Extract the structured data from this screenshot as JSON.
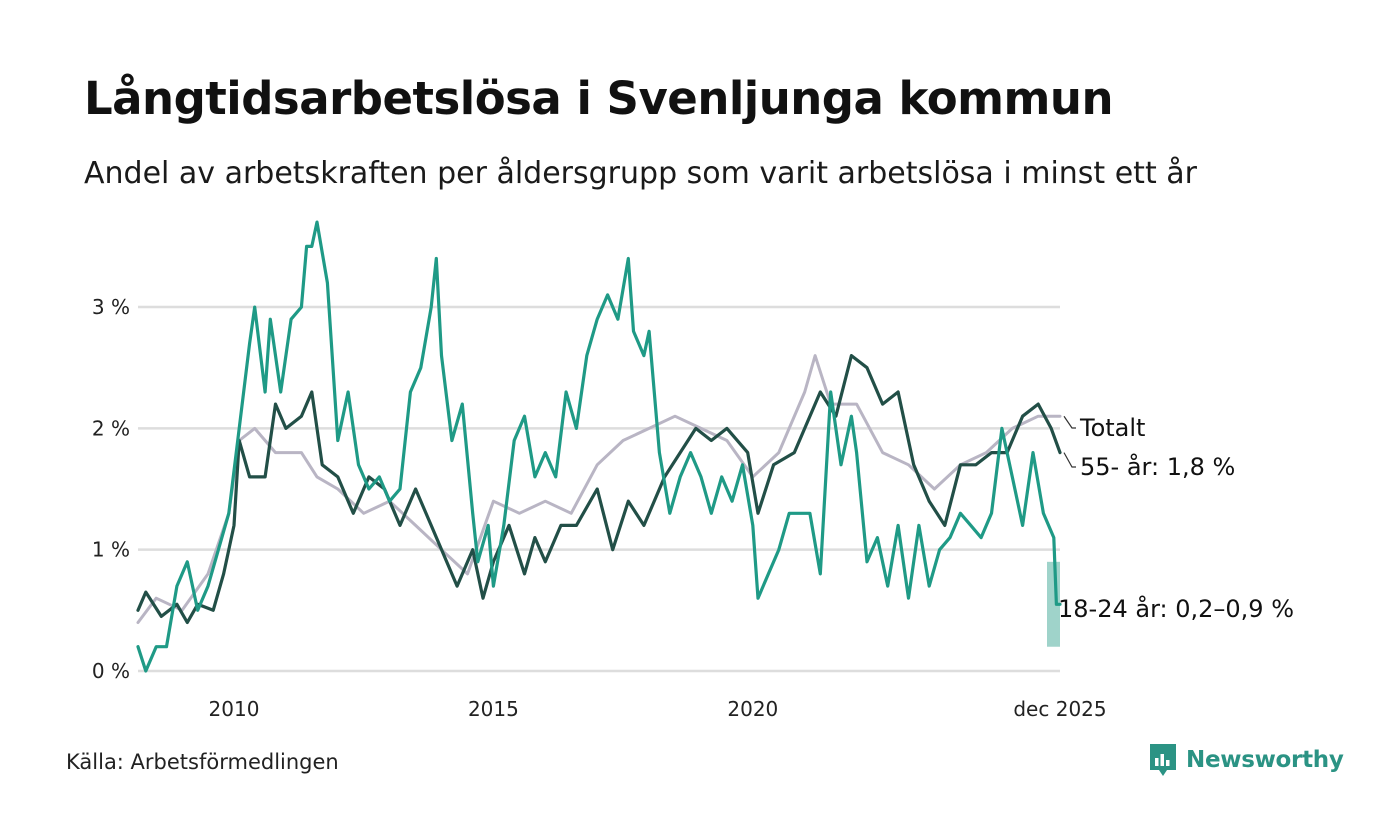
{
  "header": {
    "title": "Långtidsarbetslösa i Svenljunga kommun",
    "subtitle": "Andel av arbetskraften per åldersgrupp som varit arbetslösa i minst ett år"
  },
  "footer": {
    "source": "Källa: Arbetsförmedlingen",
    "brand": "Newsworthy"
  },
  "colors": {
    "total": "#b9b5c4",
    "age55": "#224f47",
    "age18_24": "#1f9a86",
    "band": "#9fd3ca",
    "grid": "#dddddd"
  },
  "chart_data": {
    "type": "line",
    "title": "Långtidsarbetslösa i Svenljunga kommun",
    "subtitle": "Andel av arbetskraften per åldersgrupp som varit arbetslösa i minst ett år",
    "unit": "%",
    "x_range": [
      2008.15,
      2025.92
    ],
    "ylim": [
      0,
      3.8
    ],
    "y_ticks": [
      {
        "value": 0,
        "label": "0 %"
      },
      {
        "value": 1,
        "label": "1 %"
      },
      {
        "value": 2,
        "label": "2 %"
      },
      {
        "value": 3,
        "label": "3 %"
      }
    ],
    "x_ticks": [
      {
        "value": 2010,
        "label": "2010"
      },
      {
        "value": 2015,
        "label": "2015"
      },
      {
        "value": 2020,
        "label": "2020"
      },
      {
        "value": 2025.92,
        "label": "dec 2025"
      }
    ],
    "series": [
      {
        "name": "Totalt",
        "label": "Totalt",
        "color": "#b9b5c4",
        "points": [
          [
            2008.15,
            0.4
          ],
          [
            2008.5,
            0.6
          ],
          [
            2009.0,
            0.5
          ],
          [
            2009.5,
            0.8
          ],
          [
            2009.9,
            1.3
          ],
          [
            2010.1,
            1.9
          ],
          [
            2010.4,
            2.0
          ],
          [
            2010.8,
            1.8
          ],
          [
            2011.3,
            1.8
          ],
          [
            2011.6,
            1.6
          ],
          [
            2012.0,
            1.5
          ],
          [
            2012.5,
            1.3
          ],
          [
            2013.0,
            1.4
          ],
          [
            2013.5,
            1.2
          ],
          [
            2014.0,
            1.0
          ],
          [
            2014.5,
            0.8
          ],
          [
            2015.0,
            1.4
          ],
          [
            2015.5,
            1.3
          ],
          [
            2016.0,
            1.4
          ],
          [
            2016.5,
            1.3
          ],
          [
            2017.0,
            1.7
          ],
          [
            2017.5,
            1.9
          ],
          [
            2018.0,
            2.0
          ],
          [
            2018.5,
            2.1
          ],
          [
            2019.0,
            2.0
          ],
          [
            2019.5,
            1.9
          ],
          [
            2020.0,
            1.6
          ],
          [
            2020.5,
            1.8
          ],
          [
            2021.0,
            2.3
          ],
          [
            2021.2,
            2.6
          ],
          [
            2021.5,
            2.2
          ],
          [
            2022.0,
            2.2
          ],
          [
            2022.5,
            1.8
          ],
          [
            2023.0,
            1.7
          ],
          [
            2023.5,
            1.5
          ],
          [
            2024.0,
            1.7
          ],
          [
            2024.5,
            1.8
          ],
          [
            2025.0,
            2.0
          ],
          [
            2025.5,
            2.1
          ],
          [
            2025.92,
            2.1
          ]
        ]
      },
      {
        "name": "55- år",
        "label": "55- år: 1,8 %",
        "color": "#224f47",
        "points": [
          [
            2008.15,
            0.5
          ],
          [
            2008.3,
            0.65
          ],
          [
            2008.6,
            0.45
          ],
          [
            2008.9,
            0.55
          ],
          [
            2009.1,
            0.4
          ],
          [
            2009.3,
            0.55
          ],
          [
            2009.6,
            0.5
          ],
          [
            2009.8,
            0.8
          ],
          [
            2010.0,
            1.2
          ],
          [
            2010.1,
            1.9
          ],
          [
            2010.3,
            1.6
          ],
          [
            2010.6,
            1.6
          ],
          [
            2010.8,
            2.2
          ],
          [
            2011.0,
            2.0
          ],
          [
            2011.3,
            2.1
          ],
          [
            2011.5,
            2.3
          ],
          [
            2011.7,
            1.7
          ],
          [
            2012.0,
            1.6
          ],
          [
            2012.3,
            1.3
          ],
          [
            2012.6,
            1.6
          ],
          [
            2012.9,
            1.5
          ],
          [
            2013.2,
            1.2
          ],
          [
            2013.5,
            1.5
          ],
          [
            2013.8,
            1.2
          ],
          [
            2014.1,
            0.9
          ],
          [
            2014.3,
            0.7
          ],
          [
            2014.6,
            1.0
          ],
          [
            2014.8,
            0.6
          ],
          [
            2015.0,
            0.9
          ],
          [
            2015.3,
            1.2
          ],
          [
            2015.6,
            0.8
          ],
          [
            2015.8,
            1.1
          ],
          [
            2016.0,
            0.9
          ],
          [
            2016.3,
            1.2
          ],
          [
            2016.6,
            1.2
          ],
          [
            2017.0,
            1.5
          ],
          [
            2017.3,
            1.0
          ],
          [
            2017.6,
            1.4
          ],
          [
            2017.9,
            1.2
          ],
          [
            2018.3,
            1.6
          ],
          [
            2018.6,
            1.8
          ],
          [
            2018.9,
            2.0
          ],
          [
            2019.2,
            1.9
          ],
          [
            2019.5,
            2.0
          ],
          [
            2019.9,
            1.8
          ],
          [
            2020.1,
            1.3
          ],
          [
            2020.4,
            1.7
          ],
          [
            2020.8,
            1.8
          ],
          [
            2021.0,
            2.0
          ],
          [
            2021.3,
            2.3
          ],
          [
            2021.6,
            2.1
          ],
          [
            2021.9,
            2.6
          ],
          [
            2022.2,
            2.5
          ],
          [
            2022.5,
            2.2
          ],
          [
            2022.8,
            2.3
          ],
          [
            2023.1,
            1.7
          ],
          [
            2023.4,
            1.4
          ],
          [
            2023.7,
            1.2
          ],
          [
            2024.0,
            1.7
          ],
          [
            2024.3,
            1.7
          ],
          [
            2024.6,
            1.8
          ],
          [
            2024.9,
            1.8
          ],
          [
            2025.2,
            2.1
          ],
          [
            2025.5,
            2.2
          ],
          [
            2025.75,
            2.0
          ],
          [
            2025.92,
            1.8
          ]
        ]
      },
      {
        "name": "18-24 år",
        "label": "18-24 år: 0,2–0,9 %",
        "color": "#1f9a86",
        "points": [
          [
            2008.15,
            0.2
          ],
          [
            2008.3,
            0.0
          ],
          [
            2008.5,
            0.2
          ],
          [
            2008.7,
            0.2
          ],
          [
            2008.9,
            0.7
          ],
          [
            2009.1,
            0.9
          ],
          [
            2009.3,
            0.5
          ],
          [
            2009.5,
            0.7
          ],
          [
            2009.7,
            1.0
          ],
          [
            2009.9,
            1.3
          ],
          [
            2010.1,
            2.0
          ],
          [
            2010.3,
            2.7
          ],
          [
            2010.4,
            3.0
          ],
          [
            2010.6,
            2.3
          ],
          [
            2010.7,
            2.9
          ],
          [
            2010.9,
            2.3
          ],
          [
            2011.1,
            2.9
          ],
          [
            2011.3,
            3.0
          ],
          [
            2011.4,
            3.5
          ],
          [
            2011.5,
            3.5
          ],
          [
            2011.6,
            3.7
          ],
          [
            2011.8,
            3.2
          ],
          [
            2012.0,
            1.9
          ],
          [
            2012.2,
            2.3
          ],
          [
            2012.4,
            1.7
          ],
          [
            2012.6,
            1.5
          ],
          [
            2012.8,
            1.6
          ],
          [
            2013.0,
            1.4
          ],
          [
            2013.2,
            1.5
          ],
          [
            2013.4,
            2.3
          ],
          [
            2013.6,
            2.5
          ],
          [
            2013.8,
            3.0
          ],
          [
            2013.9,
            3.4
          ],
          [
            2014.0,
            2.6
          ],
          [
            2014.2,
            1.9
          ],
          [
            2014.4,
            2.2
          ],
          [
            2014.6,
            1.3
          ],
          [
            2014.7,
            0.9
          ],
          [
            2014.9,
            1.2
          ],
          [
            2015.0,
            0.7
          ],
          [
            2015.2,
            1.2
          ],
          [
            2015.4,
            1.9
          ],
          [
            2015.6,
            2.1
          ],
          [
            2015.8,
            1.6
          ],
          [
            2016.0,
            1.8
          ],
          [
            2016.2,
            1.6
          ],
          [
            2016.4,
            2.3
          ],
          [
            2016.6,
            2.0
          ],
          [
            2016.8,
            2.6
          ],
          [
            2017.0,
            2.9
          ],
          [
            2017.2,
            3.1
          ],
          [
            2017.4,
            2.9
          ],
          [
            2017.6,
            3.4
          ],
          [
            2017.7,
            2.8
          ],
          [
            2017.9,
            2.6
          ],
          [
            2018.0,
            2.8
          ],
          [
            2018.2,
            1.8
          ],
          [
            2018.4,
            1.3
          ],
          [
            2018.6,
            1.6
          ],
          [
            2018.8,
            1.8
          ],
          [
            2019.0,
            1.6
          ],
          [
            2019.2,
            1.3
          ],
          [
            2019.4,
            1.6
          ],
          [
            2019.6,
            1.4
          ],
          [
            2019.8,
            1.7
          ],
          [
            2020.0,
            1.2
          ],
          [
            2020.1,
            0.6
          ],
          [
            2020.3,
            0.8
          ],
          [
            2020.5,
            1.0
          ],
          [
            2020.7,
            1.3
          ],
          [
            2020.9,
            1.3
          ],
          [
            2021.1,
            1.3
          ],
          [
            2021.3,
            0.8
          ],
          [
            2021.5,
            2.3
          ],
          [
            2021.7,
            1.7
          ],
          [
            2021.9,
            2.1
          ],
          [
            2022.0,
            1.8
          ],
          [
            2022.2,
            0.9
          ],
          [
            2022.4,
            1.1
          ],
          [
            2022.6,
            0.7
          ],
          [
            2022.8,
            1.2
          ],
          [
            2023.0,
            0.6
          ],
          [
            2023.2,
            1.2
          ],
          [
            2023.4,
            0.7
          ],
          [
            2023.6,
            1.0
          ],
          [
            2023.8,
            1.1
          ],
          [
            2024.0,
            1.3
          ],
          [
            2024.2,
            1.2
          ],
          [
            2024.4,
            1.1
          ],
          [
            2024.6,
            1.3
          ],
          [
            2024.8,
            2.0
          ],
          [
            2025.0,
            1.6
          ],
          [
            2025.2,
            1.2
          ],
          [
            2025.4,
            1.8
          ],
          [
            2025.6,
            1.3
          ],
          [
            2025.8,
            1.1
          ],
          [
            2025.85,
            0.55
          ],
          [
            2025.92,
            0.55
          ]
        ]
      }
    ],
    "ranges": [
      {
        "series": "18-24 år",
        "x": 2025.92,
        "low": 0.2,
        "high": 0.9
      }
    ]
  }
}
